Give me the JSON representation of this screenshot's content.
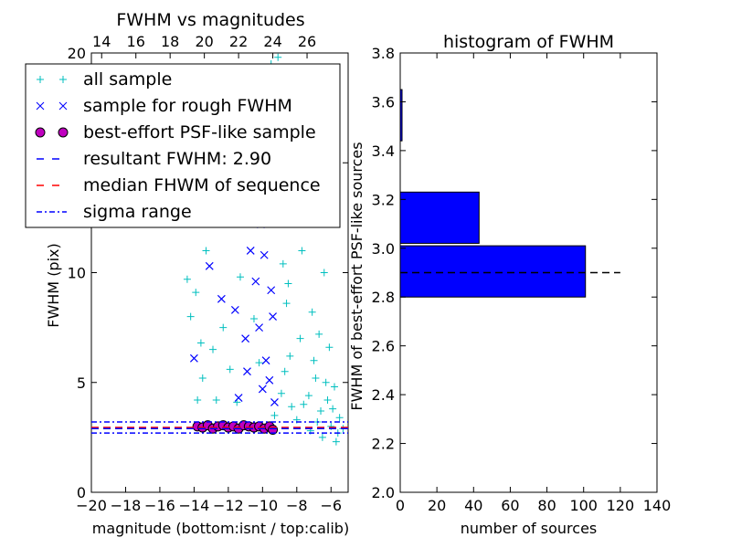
{
  "colors": {
    "all_sample": "#00bfbf",
    "rough_sample": "#0000ff",
    "psf_face": "#bf00bf",
    "resultant_line": "#0000ff",
    "median_line": "#ff0000",
    "sigma_line": "#0000ff",
    "hist_bar": "#0000ff",
    "hist_ref_line": "#000000"
  },
  "chart_data": [
    {
      "type": "scatter",
      "title": "FWHM vs magnitudes",
      "xlabel": "magnitude (bottom:isnt / top:calib)",
      "ylabel": "FWHM (pix)",
      "xlim": [
        -20,
        -5
      ],
      "ylim": [
        0,
        20
      ],
      "xticks": [
        -20,
        -18,
        -16,
        -14,
        -12,
        -10,
        -8,
        -6
      ],
      "xtick_labels": [
        "−20",
        "−18",
        "−16",
        "−14",
        "−12",
        "−10",
        "−8",
        "−6"
      ],
      "yticks": [
        0,
        5,
        10,
        15,
        20
      ],
      "ytick_labels": [
        "0",
        "5",
        "10",
        "15",
        "20"
      ],
      "top_xticks": [
        14,
        16,
        18,
        20,
        22,
        24,
        26
      ],
      "top_offset": 33.4,
      "top_xtick_labels": [
        "14",
        "16",
        "18",
        "20",
        "22",
        "24",
        "26"
      ],
      "grid": false,
      "legend_position": "top-left",
      "legend": [
        {
          "label": "all sample",
          "marker": "plus"
        },
        {
          "label": "sample for rough FWHM",
          "marker": "x"
        },
        {
          "label": "best-effort PSF-like sample",
          "marker": "circle"
        },
        {
          "label": "resultant FWHM: 2.90",
          "marker": "dashed"
        },
        {
          "label": "median FHWM of sequence",
          "marker": "dashed-red"
        },
        {
          "label": "sigma range",
          "marker": "dashdot"
        }
      ],
      "lines": {
        "resultant": 2.9,
        "median": 2.95,
        "sigma_low": 2.7,
        "sigma_high": 3.2
      },
      "series": [
        {
          "name": "all sample",
          "points": [
            [
              -14.4,
              9.7
            ],
            [
              -14.2,
              8.0
            ],
            [
              -13.9,
              9.1
            ],
            [
              -13.6,
              6.8
            ],
            [
              -13.8,
              4.2
            ],
            [
              -13.5,
              5.2
            ],
            [
              -13.3,
              11.0
            ],
            [
              -12.9,
              6.5
            ],
            [
              -12.7,
              4.2
            ],
            [
              -12.3,
              7.5
            ],
            [
              -11.9,
              5.6
            ],
            [
              -11.5,
              4.1
            ],
            [
              -11.3,
              9.8
            ],
            [
              -11.0,
              12.5
            ],
            [
              -10.8,
              15.0
            ],
            [
              -10.5,
              7.9
            ],
            [
              -10.2,
              5.9
            ],
            [
              -9.9,
              18.0
            ],
            [
              -9.5,
              19.5
            ],
            [
              -9.1,
              19.8
            ],
            [
              -8.8,
              10.4
            ],
            [
              -8.6,
              8.6
            ],
            [
              -8.4,
              6.2
            ],
            [
              -8.1,
              13.8
            ],
            [
              -7.9,
              18.9
            ],
            [
              -7.6,
              4.0
            ],
            [
              -7.4,
              12.5
            ],
            [
              -7.1,
              8.2
            ],
            [
              -6.9,
              5.2
            ],
            [
              -6.6,
              3.7
            ],
            [
              -6.4,
              10.0
            ],
            [
              -6.1,
              6.6
            ],
            [
              -5.8,
              4.8
            ],
            [
              -5.5,
              3.4
            ],
            [
              -5.3,
              2.9
            ],
            [
              -8.9,
              4.5
            ],
            [
              -8.7,
              5.5
            ],
            [
              -8.3,
              3.9
            ],
            [
              -7.8,
              7.0
            ],
            [
              -7.3,
              4.4
            ],
            [
              -6.8,
              3.2
            ],
            [
              -6.3,
              5.0
            ],
            [
              -5.9,
              3.8
            ],
            [
              -8.5,
              9.5
            ],
            [
              -7.7,
              11.0
            ],
            [
              -7.0,
              6.0
            ],
            [
              -6.2,
              4.2
            ],
            [
              -5.6,
              2.7
            ],
            [
              -8.2,
              16.0
            ],
            [
              -7.5,
              14.0
            ],
            [
              -6.7,
              7.2
            ],
            [
              -6.0,
              3.0
            ],
            [
              -9.3,
              3.5
            ],
            [
              -8.0,
              3.3
            ],
            [
              -7.2,
              2.8
            ],
            [
              -6.5,
              2.5
            ],
            [
              -5.7,
              2.3
            ]
          ]
        },
        {
          "name": "sample for rough FWHM",
          "points": [
            [
              -14.0,
              6.1
            ],
            [
              -13.1,
              10.3
            ],
            [
              -12.4,
              8.8
            ],
            [
              -11.6,
              8.3
            ],
            [
              -11.4,
              4.3
            ],
            [
              -11.0,
              7.0
            ],
            [
              -10.9,
              5.5
            ],
            [
              -10.7,
              11.0
            ],
            [
              -10.6,
              13.4
            ],
            [
              -10.4,
              9.6
            ],
            [
              -10.2,
              7.5
            ],
            [
              -10.1,
              12.2
            ],
            [
              -10.0,
              4.7
            ],
            [
              -9.8,
              17.3
            ],
            [
              -9.7,
              14.0
            ],
            [
              -9.6,
              5.1
            ],
            [
              -9.5,
              9.2
            ],
            [
              -9.4,
              8.0
            ],
            [
              -9.3,
              4.1
            ],
            [
              -9.6,
              12.5
            ],
            [
              -9.8,
              6.0
            ],
            [
              -10.3,
              16.0
            ],
            [
              -9.9,
              10.8
            ],
            [
              -9.4,
              13.2
            ]
          ]
        },
        {
          "name": "best-effort PSF-like sample",
          "points": [
            [
              -13.8,
              3.0
            ],
            [
              -13.5,
              2.95
            ],
            [
              -13.2,
              3.05
            ],
            [
              -12.9,
              2.9
            ],
            [
              -12.6,
              3.0
            ],
            [
              -12.3,
              3.05
            ],
            [
              -12.0,
              2.95
            ],
            [
              -11.7,
              3.0
            ],
            [
              -11.4,
              2.9
            ],
            [
              -11.1,
              3.05
            ],
            [
              -10.8,
              3.0
            ],
            [
              -10.5,
              2.95
            ],
            [
              -10.2,
              3.0
            ],
            [
              -9.9,
              2.9
            ],
            [
              -9.6,
              3.0
            ],
            [
              -9.4,
              2.85
            ]
          ]
        }
      ]
    },
    {
      "type": "bar",
      "orientation": "horizontal",
      "title": "histogram of FWHM",
      "xlabel": "number of sources",
      "ylabel": "FWHM of best-effort PSF-like sources",
      "xlim": [
        0,
        140
      ],
      "ylim": [
        2.0,
        3.8
      ],
      "xticks": [
        0,
        20,
        40,
        60,
        80,
        100,
        120,
        140
      ],
      "yticks": [
        2.0,
        2.2,
        2.4,
        2.6,
        2.8,
        3.0,
        3.2,
        3.4,
        3.6,
        3.8
      ],
      "ytick_labels": [
        "2.0",
        "2.2",
        "2.4",
        "2.6",
        "2.8",
        "3.0",
        "3.2",
        "3.4",
        "3.6",
        "3.8"
      ],
      "grid": false,
      "bins": [
        {
          "from": 2.8,
          "to": 3.01,
          "count": 101
        },
        {
          "from": 3.02,
          "to": 3.23,
          "count": 43
        },
        {
          "from": 3.44,
          "to": 3.65,
          "count": 1
        }
      ],
      "reference_line": {
        "y": 2.9,
        "x_from": 0,
        "x_to": 120
      }
    }
  ]
}
